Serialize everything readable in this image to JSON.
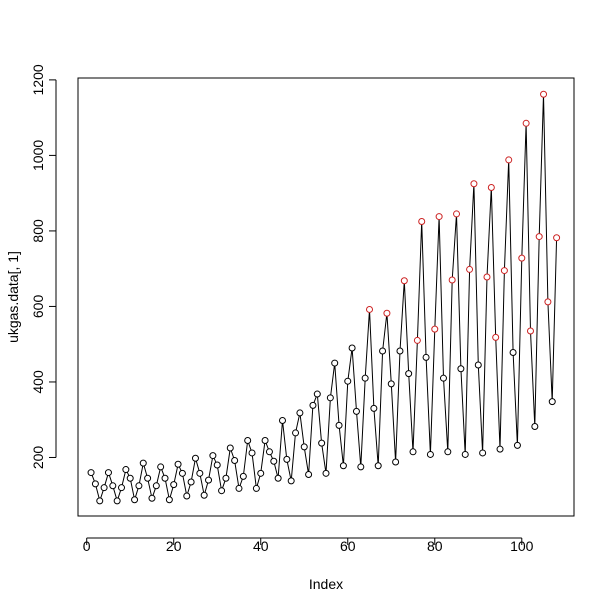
{
  "chart_data": {
    "type": "line",
    "title": "",
    "xlabel": "Index",
    "ylabel": "ukgas.data[, 1]",
    "xlim": [
      -2,
      112
    ],
    "ylim": [
      45,
      1205
    ],
    "x_ticks": [
      0,
      20,
      40,
      60,
      80,
      100
    ],
    "y_ticks": [
      200,
      400,
      600,
      800,
      1000,
      1200
    ],
    "grid": false,
    "line_color": "#000000",
    "point_color_default": "#000000",
    "point_color_highlight": "#cc2222",
    "highlight_threshold": 500,
    "series": [
      {
        "x": [
          1,
          2,
          3,
          4,
          5,
          6,
          7,
          8,
          9,
          10,
          11,
          12,
          13,
          14,
          15,
          16,
          17,
          18,
          19,
          20,
          21,
          22,
          23,
          24,
          25,
          26,
          27,
          28,
          29,
          30,
          31,
          32,
          33,
          34,
          35,
          36,
          37,
          38,
          39,
          40,
          41,
          42,
          43,
          44,
          45,
          46,
          47,
          48,
          49,
          50,
          51,
          52,
          53,
          54,
          55,
          56,
          57,
          58,
          59,
          60,
          61,
          62,
          63,
          64,
          65,
          66,
          67,
          68,
          69,
          70,
          71,
          72,
          73,
          74,
          75,
          76,
          77,
          78,
          79,
          80,
          81,
          82,
          83,
          84,
          85,
          86,
          87,
          88,
          89,
          90,
          91,
          92,
          93,
          94,
          95,
          96,
          97,
          98,
          99,
          100,
          101,
          102,
          103,
          104,
          105,
          106,
          107,
          108
        ],
        "values": [
          160,
          130,
          85,
          120,
          160,
          125,
          85,
          120,
          168,
          145,
          88,
          125,
          185,
          145,
          92,
          125,
          175,
          145,
          88,
          128,
          182,
          158,
          98,
          135,
          198,
          158,
          100,
          140,
          205,
          180,
          112,
          145,
          225,
          192,
          118,
          150,
          245,
          212,
          118,
          158,
          245,
          215,
          190,
          145,
          298,
          195,
          138,
          265,
          318,
          228,
          155,
          338,
          368,
          238,
          158,
          358,
          450,
          285,
          178,
          402,
          490,
          322,
          175,
          410,
          592,
          330,
          178,
          482,
          582,
          395,
          188,
          482,
          668,
          422,
          215,
          510,
          825,
          465,
          208,
          540,
          838,
          410,
          215,
          670,
          845,
          435,
          208,
          698,
          925,
          445,
          212,
          678,
          915,
          518,
          222,
          695,
          988,
          478,
          232,
          728,
          1085,
          535,
          282,
          785,
          1162,
          612,
          348,
          782
        ]
      }
    ]
  }
}
